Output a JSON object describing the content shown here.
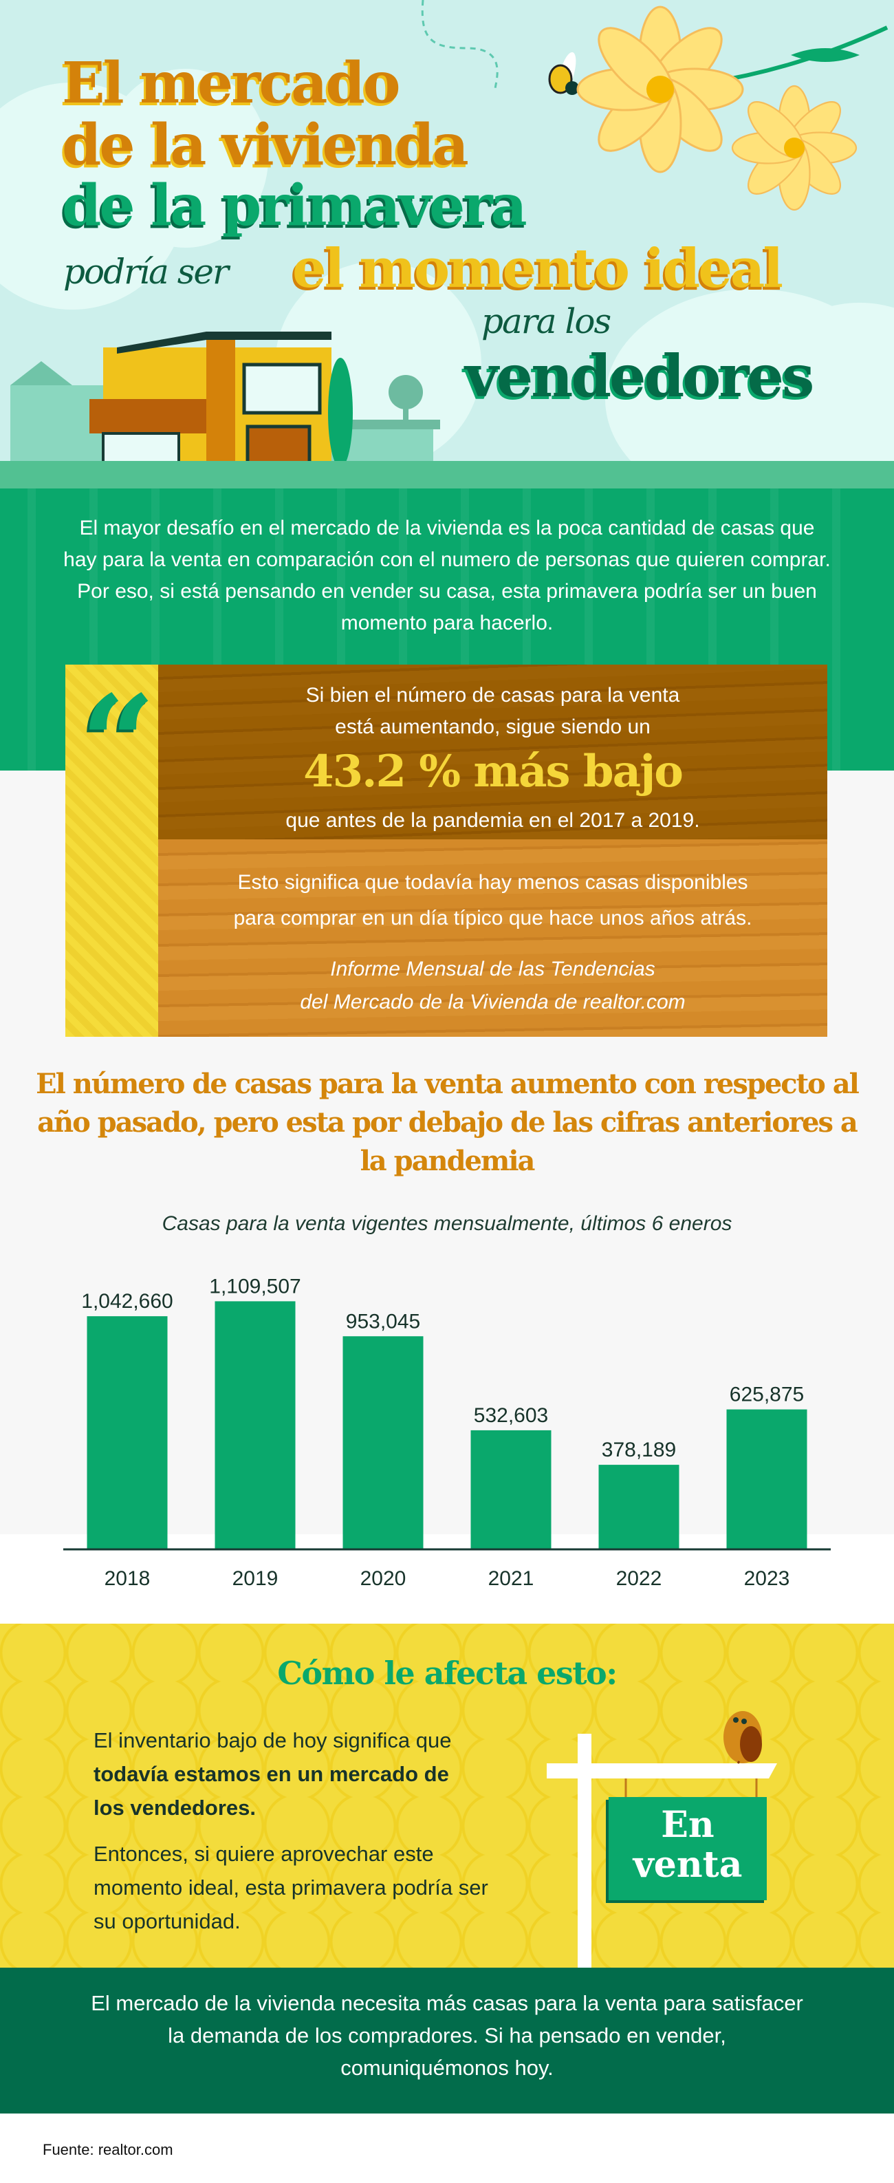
{
  "hero": {
    "line1": "El mercado",
    "line2": "de la vivienda",
    "line3": "de la primavera",
    "line4_italic": "podría ser",
    "line4_bold": "el momento ideal",
    "line5_italic": "para los",
    "line6": "vendedores"
  },
  "intro": "El mayor desafío en el mercado de la vivienda es la poca cantidad de casas que hay para la venta en comparación con el numero de personas que quieren comprar. Por eso, si está pensando en vender su casa, esta primavera podría ser un buen momento para hacerlo.",
  "quote": {
    "line1": "Si bien el número de casas para la venta",
    "line2": "está aumentando, sigue siendo un",
    "highlight": "43.2 % más bajo",
    "line3": "que antes de la pandemia en el 2017 a 2019.",
    "body1": "Esto significa que todavía hay menos casas disponibles",
    "body2": "para comprar en un día típico que hace unos años atrás.",
    "cite1": "Informe Mensual de las Tendencias",
    "cite2": "del Mercado de la Vivienda de realtor.com"
  },
  "chart_data": {
    "type": "bar",
    "title": "El número de casas para la venta aumento con respecto al año pasado, pero esta por debajo de las cifras anteriores a la pandemia",
    "subtitle": "Casas para la venta vigentes mensualmente, últimos 6 eneros",
    "categories": [
      "2018",
      "2019",
      "2020",
      "2021",
      "2022",
      "2023"
    ],
    "values": [
      1042660,
      1109507,
      953045,
      532603,
      378189,
      625875
    ],
    "labels": [
      "1,042,660",
      "1,109,507",
      "953,045",
      "532,603",
      "378,189",
      "625,875"
    ],
    "ylim": [
      0,
      1200000
    ],
    "grid": false,
    "bar_color": "#0aa86c"
  },
  "impact": {
    "heading": "Cómo le afecta esto:",
    "p1_a": "El inventario bajo de hoy significa que ",
    "p1_bold": "todavía estamos en un mercado de los vendedores.",
    "p2": "Entonces, si quiere aprovechar este momento ideal, esta primavera podría ser su oportunidad.",
    "sign_line1": "En",
    "sign_line2": "venta"
  },
  "closing": "El mercado de la vivienda necesita más casas para la venta para satisfacer la demanda de los compradores. Si ha pensado en vender, comuniquémonos hoy.",
  "source": "Fuente: realtor.com",
  "colors": {
    "green": "#0aa86c",
    "dark_green": "#026c4b",
    "orange": "#d4820a",
    "yellow": "#f3dc3c",
    "sky": "#cdf0ec"
  }
}
